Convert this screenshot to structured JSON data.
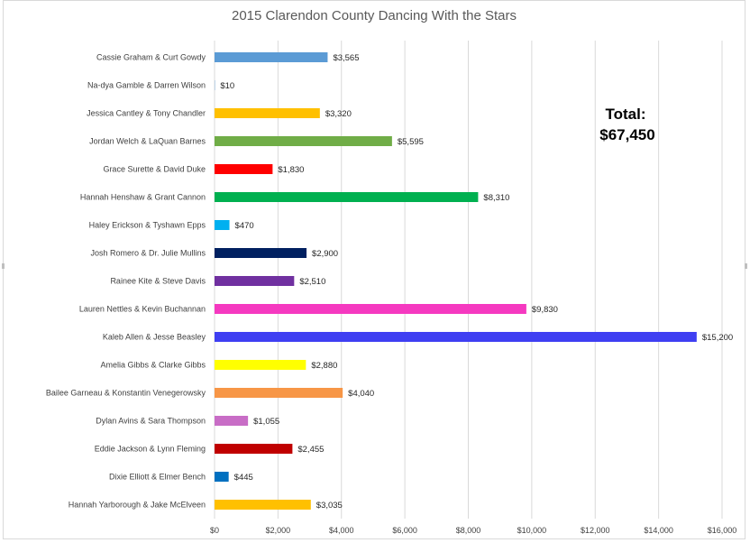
{
  "chart_data": {
    "type": "bar",
    "orientation": "horizontal",
    "title": "2015 Clarendon County Dancing With the Stars",
    "categories": [
      "Cassie Graham & Curt Gowdy",
      "Na-dya Gamble & Darren Wilson",
      "Jessica Cantley & Tony Chandler",
      "Jordan Welch & LaQuan Barnes",
      "Grace Surette & David Duke",
      "Hannah Henshaw & Grant Cannon",
      "Haley Erickson & Tyshawn Epps",
      "Josh Romero & Dr. Julie Mullins",
      "Rainee Kite & Steve Davis",
      "Lauren Nettles & Kevin Buchannan",
      "Kaleb Allen & Jesse Beasley",
      "Amelia Gibbs & Clarke Gibbs",
      "Bailee Garneau & Konstantin Venegerowsky",
      "Dylan Avins & Sara Thompson",
      "Eddie Jackson & Lynn Fleming",
      "Dixie Elliott & Elmer Bench",
      "Hannah Yarborough & Jake McElveen"
    ],
    "values": [
      3565,
      10,
      3320,
      5595,
      1830,
      8310,
      470,
      2900,
      2510,
      9830,
      15200,
      2880,
      4040,
      1055,
      2455,
      445,
      3035
    ],
    "data_labels": [
      "$3,565",
      "$10",
      "$3,320",
      "$5,595",
      "$1,830",
      "$8,310",
      "$470",
      "$2,900",
      "$2,510",
      "$9,830",
      "$15,200",
      "$2,880",
      "$4,040",
      "$1,055",
      "$2,455",
      "$445",
      "$3,035"
    ],
    "colors": [
      "#5b9bd5",
      "#5b9bd5",
      "#ffc000",
      "#70ad47",
      "#ff0000",
      "#00b050",
      "#00b0f0",
      "#002060",
      "#7030a0",
      "#f539c0",
      "#3f3ff2",
      "#ffff00",
      "#f79646",
      "#c86dc6",
      "#c00000",
      "#0070c0",
      "#ffc000"
    ],
    "xlim": [
      0,
      16000
    ],
    "xticks": [
      "$0",
      "$2,000",
      "$4,000",
      "$6,000",
      "$8,000",
      "$10,000",
      "$12,000",
      "$14,000",
      "$16,000"
    ],
    "grid": true,
    "annotation": {
      "line1": "Total:",
      "line2": "$67,450"
    },
    "xlabel": "",
    "ylabel": ""
  }
}
